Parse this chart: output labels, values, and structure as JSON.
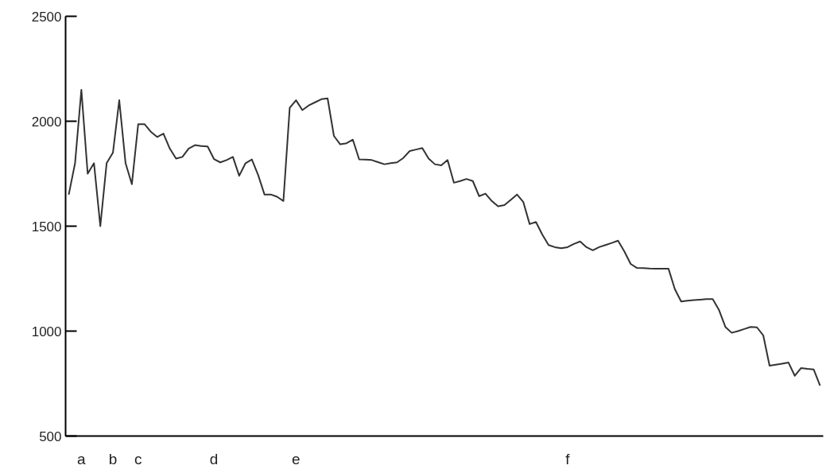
{
  "chart_data": {
    "type": "line",
    "color": "#333333",
    "ylim": [
      500,
      2500
    ],
    "yticks": [
      500,
      1000,
      1500,
      2000,
      2500
    ],
    "categories": [
      null,
      null,
      "a",
      null,
      null,
      null,
      null,
      "b",
      null,
      null,
      null,
      "c",
      null,
      null,
      null,
      null,
      null,
      null,
      null,
      null,
      null,
      null,
      null,
      "d",
      null,
      null,
      null,
      null,
      null,
      null,
      null,
      null,
      null,
      null,
      null,
      null,
      "e",
      null,
      null,
      null,
      null,
      null,
      null,
      null,
      null,
      null,
      null,
      null,
      null,
      null,
      null,
      null,
      null,
      null,
      null,
      null,
      null,
      null,
      null,
      null,
      null,
      null,
      null,
      null,
      null,
      null,
      null,
      null,
      null,
      null,
      null,
      null,
      null,
      null,
      null,
      null,
      null,
      null,
      null,
      "f",
      null,
      null,
      null,
      null,
      null,
      null,
      null,
      null,
      null,
      null,
      null,
      null,
      null,
      null,
      null,
      null,
      null,
      null,
      null,
      null,
      null,
      null,
      null,
      null,
      null,
      null,
      null,
      null,
      null,
      null,
      null,
      null,
      null,
      null,
      null,
      null,
      null,
      null,
      null,
      null
    ],
    "values": [
      1650,
      1800,
      2150,
      1750,
      1800,
      1500,
      1800,
      1850,
      2100,
      1800,
      1700,
      1986,
      1986,
      1950,
      1925,
      1941,
      1870,
      1822,
      1830,
      1870,
      1886,
      1882,
      1880,
      1820,
      1804,
      1815,
      1830,
      1740,
      1800,
      1818,
      1744,
      1651,
      1651,
      1640,
      1620,
      2064,
      2100,
      2053,
      2075,
      2090,
      2105,
      2109,
      1930,
      1890,
      1895,
      1912,
      1818,
      1817,
      1815,
      1805,
      1795,
      1800,
      1804,
      1825,
      1858,
      1865,
      1872,
      1822,
      1795,
      1790,
      1815,
      1707,
      1715,
      1725,
      1715,
      1643,
      1655,
      1620,
      1595,
      1600,
      1625,
      1651,
      1615,
      1510,
      1520,
      1460,
      1410,
      1400,
      1395,
      1400,
      1415,
      1427,
      1400,
      1385,
      1400,
      1410,
      1420,
      1431,
      1380,
      1320,
      1301,
      1300,
      1298,
      1297,
      1297,
      1297,
      1200,
      1141,
      1145,
      1148,
      1150,
      1152,
      1152,
      1100,
      1020,
      992,
      1000,
      1010,
      1020,
      1018,
      980,
      835,
      840,
      845,
      850,
      787,
      824,
      820,
      817,
      740
    ]
  }
}
